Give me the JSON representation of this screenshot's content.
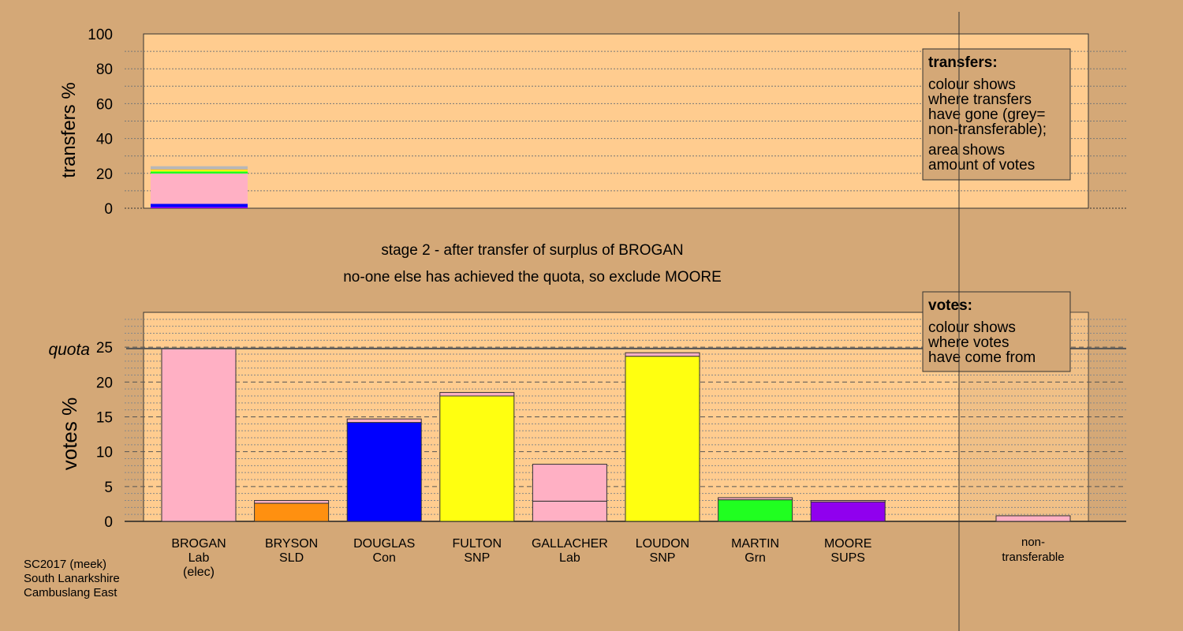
{
  "colors": {
    "background": "#d4a877",
    "plot_bg": "#ffcc8f",
    "lab": "#ffb0c4",
    "sld": "#ff9010",
    "con": "#0000ff",
    "snp": "#ffff10",
    "grn": "#20ff20",
    "sups": "#9000ee",
    "nontransferable": "#b8b8b8",
    "border": "#333333"
  },
  "chart_data": [
    {
      "type": "bar",
      "name": "transfers",
      "ylabel": "transfers %",
      "ylim": [
        0,
        100
      ],
      "yticks": [
        "0",
        "20",
        "40",
        "60",
        "80",
        "100"
      ],
      "stacked_segments": [
        {
          "party": "sups",
          "value": 0.7
        },
        {
          "party": "con",
          "value": 1.8
        },
        {
          "party": "lab",
          "value": 17.4
        },
        {
          "party": "grn",
          "value": 1.2
        },
        {
          "party": "snp",
          "value": 0.9
        },
        {
          "party": "sld",
          "value": 0.3
        },
        {
          "party": "nontransferable",
          "value": 1.8
        }
      ],
      "legend": {
        "title": "transfers:",
        "lines1": [
          "colour shows",
          "where transfers",
          "have gone (grey=",
          "non-transferable);"
        ],
        "lines2": [
          "area shows",
          "amount of votes"
        ]
      }
    },
    {
      "type": "bar",
      "name": "votes",
      "ylabel": "votes %",
      "ylim": [
        0,
        30
      ],
      "yticks": [
        "0",
        "5",
        "10",
        "15",
        "20",
        "25"
      ],
      "quota": 24.8,
      "quota_label": "quota",
      "categories": [
        {
          "name": "BROGAN",
          "party": "Lab",
          "note": "(elec)",
          "color": "lab",
          "base": 24.8,
          "transfer": 0,
          "transfer_color": "lab"
        },
        {
          "name": "BRYSON",
          "party": "SLD",
          "note": "",
          "color": "sld",
          "base": 2.6,
          "transfer": 0.4,
          "transfer_color": "lab"
        },
        {
          "name": "DOUGLAS",
          "party": "Con",
          "note": "",
          "color": "con",
          "base": 14.2,
          "transfer": 0.5,
          "transfer_color": "lab"
        },
        {
          "name": "FULTON",
          "party": "SNP",
          "note": "",
          "color": "snp",
          "base": 18.0,
          "transfer": 0.5,
          "transfer_color": "lab"
        },
        {
          "name": "GALLACHER",
          "party": "Lab",
          "note": "",
          "color": "lab",
          "base": 2.9,
          "transfer": 5.3,
          "transfer_color": "lab"
        },
        {
          "name": "LOUDON",
          "party": "SNP",
          "note": "",
          "color": "snp",
          "base": 23.7,
          "transfer": 0.5,
          "transfer_color": "lab"
        },
        {
          "name": "MARTIN",
          "party": "Grn",
          "note": "",
          "color": "grn",
          "base": 3.1,
          "transfer": 0.3,
          "transfer_color": "lab"
        },
        {
          "name": "MOORE",
          "party": "SUPS",
          "note": "",
          "color": "sups",
          "base": 2.8,
          "transfer": 0.2,
          "transfer_color": "lab"
        }
      ],
      "nontransferable": {
        "label1": "non-",
        "label2": "transferable",
        "value": 0.8,
        "color": "lab"
      },
      "legend": {
        "title": "votes:",
        "lines": [
          "colour shows",
          "where votes",
          "have come from"
        ]
      }
    }
  ],
  "stage": {
    "line1": "stage 2 - after transfer of surplus of BROGAN",
    "line2": "no-one else has achieved the quota, so exclude MOORE"
  },
  "footer": {
    "line1": "SC2017 (meek)",
    "line2": "South Lanarkshire",
    "line3": "Cambuslang East"
  }
}
